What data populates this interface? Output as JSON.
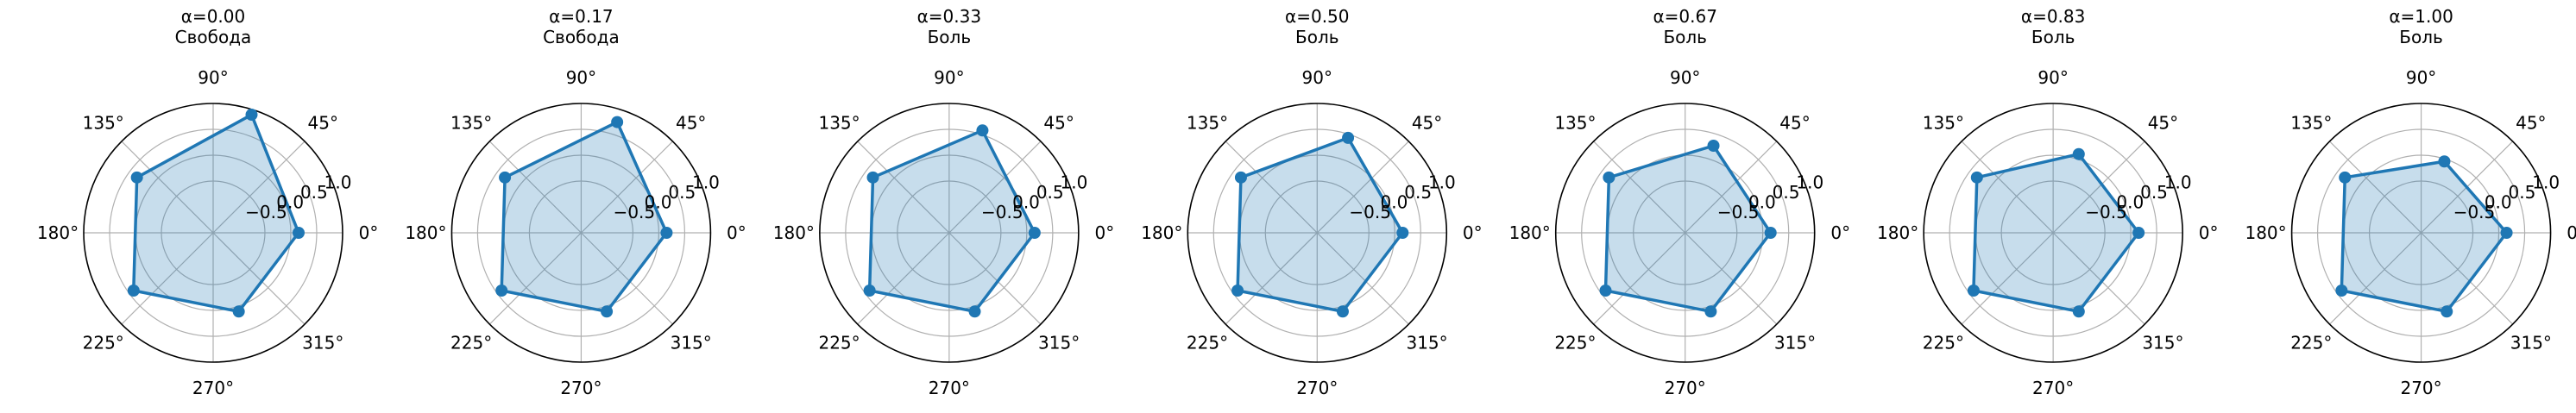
{
  "chart_data": [
    {
      "type": "radar",
      "title_line1": "α=0.00",
      "title_line2": "Свобода",
      "angles_deg": [
        0,
        72,
        144,
        216,
        288
      ],
      "values": [
        0.15,
        0.9,
        0.32,
        0.4,
        0.1
      ],
      "rlim": [
        -1.5,
        1.0
      ],
      "radial_ticks": [
        "−0.5",
        "0.0",
        "0.5",
        "1.0"
      ],
      "radial_tick_values": [
        -0.5,
        0.0,
        0.5,
        1.0
      ],
      "angle_ticks": [
        "0°",
        "45°",
        "90°",
        "135°",
        "180°",
        "225°",
        "270°",
        "315°"
      ],
      "grid": true
    },
    {
      "type": "radar",
      "title_line1": "α=0.17",
      "title_line2": "Свобода",
      "angles_deg": [
        0,
        72,
        144,
        216,
        288
      ],
      "values": [
        0.15,
        0.75,
        0.32,
        0.4,
        0.1
      ],
      "rlim": [
        -1.5,
        1.0
      ],
      "radial_ticks": [
        "−0.5",
        "0.0",
        "0.5",
        "1.0"
      ],
      "radial_tick_values": [
        -0.5,
        0.0,
        0.5,
        1.0
      ],
      "angle_ticks": [
        "0°",
        "45°",
        "90°",
        "135°",
        "180°",
        "225°",
        "270°",
        "315°"
      ],
      "grid": true
    },
    {
      "type": "radar",
      "title_line1": "α=0.33",
      "title_line2": "Боль",
      "angles_deg": [
        0,
        72,
        144,
        216,
        288
      ],
      "values": [
        0.15,
        0.58,
        0.32,
        0.4,
        0.1
      ],
      "rlim": [
        -1.5,
        1.0
      ],
      "radial_ticks": [
        "−0.5",
        "0.0",
        "0.5",
        "1.0"
      ],
      "radial_tick_values": [
        -0.5,
        0.0,
        0.5,
        1.0
      ],
      "angle_ticks": [
        "0°",
        "45°",
        "90°",
        "135°",
        "180°",
        "225°",
        "270°",
        "315°"
      ],
      "grid": true
    },
    {
      "type": "radar",
      "title_line1": "α=0.50",
      "title_line2": "Боль",
      "angles_deg": [
        0,
        72,
        144,
        216,
        288
      ],
      "values": [
        0.15,
        0.43,
        0.32,
        0.4,
        0.1
      ],
      "rlim": [
        -1.5,
        1.0
      ],
      "radial_ticks": [
        "−0.5",
        "0.0",
        "0.5",
        "1.0"
      ],
      "radial_tick_values": [
        -0.5,
        0.0,
        0.5,
        1.0
      ],
      "angle_ticks": [
        "0°",
        "45°",
        "90°",
        "135°",
        "180°",
        "225°",
        "270°",
        "315°"
      ],
      "grid": true
    },
    {
      "type": "radar",
      "title_line1": "α=0.67",
      "title_line2": "Боль",
      "angles_deg": [
        0,
        72,
        144,
        216,
        288
      ],
      "values": [
        0.15,
        0.27,
        0.32,
        0.4,
        0.1
      ],
      "rlim": [
        -1.5,
        1.0
      ],
      "radial_ticks": [
        "−0.5",
        "0.0",
        "0.5",
        "1.0"
      ],
      "radial_tick_values": [
        -0.5,
        0.0,
        0.5,
        1.0
      ],
      "angle_ticks": [
        "0°",
        "45°",
        "90°",
        "135°",
        "180°",
        "225°",
        "270°",
        "315°"
      ],
      "grid": true
    },
    {
      "type": "radar",
      "title_line1": "α=0.83",
      "title_line2": "Боль",
      "angles_deg": [
        0,
        72,
        144,
        216,
        288
      ],
      "values": [
        0.15,
        0.1,
        0.32,
        0.4,
        0.1
      ],
      "rlim": [
        -1.5,
        1.0
      ],
      "radial_ticks": [
        "−0.5",
        "0.0",
        "0.5",
        "1.0"
      ],
      "radial_tick_values": [
        -0.5,
        0.0,
        0.5,
        1.0
      ],
      "angle_ticks": [
        "0°",
        "45°",
        "90°",
        "135°",
        "180°",
        "225°",
        "270°",
        "315°"
      ],
      "grid": true
    },
    {
      "type": "radar",
      "title_line1": "α=1.00",
      "title_line2": "Боль",
      "angles_deg": [
        0,
        72,
        144,
        216,
        288
      ],
      "values": [
        0.15,
        -0.05,
        0.32,
        0.4,
        0.1
      ],
      "rlim": [
        -1.5,
        1.0
      ],
      "radial_ticks": [
        "−0.5",
        "0.0",
        "0.5",
        "1.0"
      ],
      "radial_tick_values": [
        -0.5,
        0.0,
        0.5,
        1.0
      ],
      "angle_ticks": [
        "0°",
        "45°",
        "90°",
        "135°",
        "180°",
        "225°",
        "270°",
        "315°"
      ],
      "grid": true
    }
  ],
  "colors": {
    "line": "#1f77b4",
    "fill": "#1f77b4",
    "grid": "#b0b0b0",
    "spine": "#000000"
  }
}
